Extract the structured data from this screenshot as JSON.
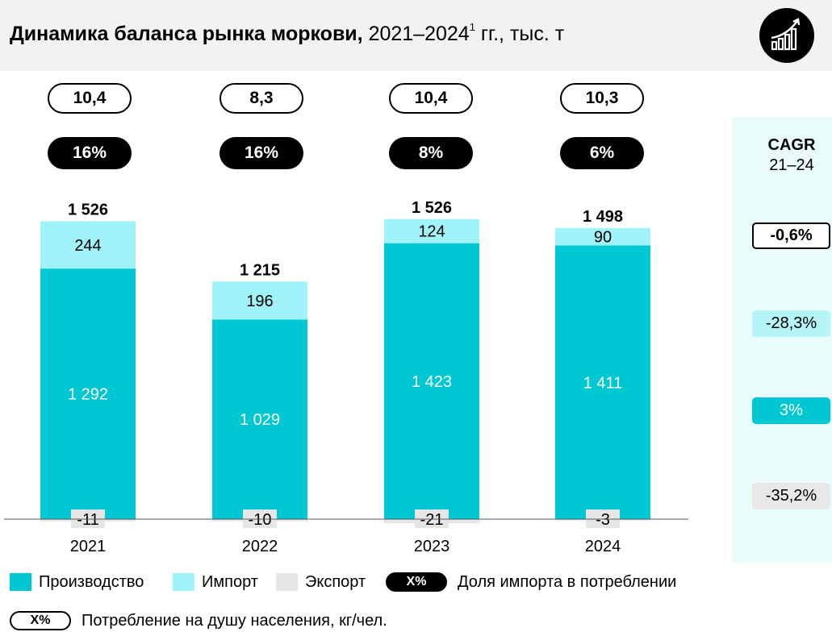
{
  "header": {
    "title_bold": "Динамика баланса рынка моркови,",
    "title_rest": " 2021–2024",
    "title_sup": "1",
    "title_tail": " гг., тыс. т",
    "logo_icon": "growth-chart-icon"
  },
  "colors": {
    "production": "#00c8d2",
    "import": "#a0f4f9",
    "export": "#e6e6e6",
    "panel": "#eafbfb"
  },
  "consumption_per_capita": [
    "10,4",
    "8,3",
    "10,4",
    "10,3"
  ],
  "import_share": [
    "16%",
    "16%",
    "8%",
    "6%"
  ],
  "cagr": {
    "title": "CAGR",
    "period": "21–24",
    "consumption": "-0,6%",
    "import": "-28,3%",
    "production": "3%",
    "export": "-35,2%"
  },
  "chart_data": {
    "type": "bar",
    "stacked": true,
    "categories": [
      "2021",
      "2022",
      "2023",
      "2024"
    ],
    "series": [
      {
        "name": "Производство",
        "values": [
          1292,
          1029,
          1423,
          1411
        ],
        "labels": [
          "1 292",
          "1 029",
          "1 423",
          "1 411"
        ]
      },
      {
        "name": "Импорт",
        "values": [
          244,
          196,
          124,
          90
        ],
        "labels": [
          "244",
          "196",
          "124",
          "90"
        ]
      },
      {
        "name": "Экспорт",
        "values": [
          -11,
          -10,
          -21,
          -3
        ],
        "labels": [
          "-11",
          "-10",
          "-21",
          "-3"
        ]
      }
    ],
    "totals": [
      "1 526",
      "1 215",
      "1 526",
      "1 498"
    ],
    "title": "Динамика баланса рынка моркови, 2021–2024 гг., тыс. т",
    "xlabel": "",
    "ylabel": ""
  },
  "legend": {
    "production": "Производство",
    "import": "Импорт",
    "export": "Экспорт",
    "share_pill": "X%",
    "share_label": "Доля импорта в потреблении",
    "cons_pill": "X%",
    "cons_label": "Потребление на душу населения, кг/чел."
  }
}
